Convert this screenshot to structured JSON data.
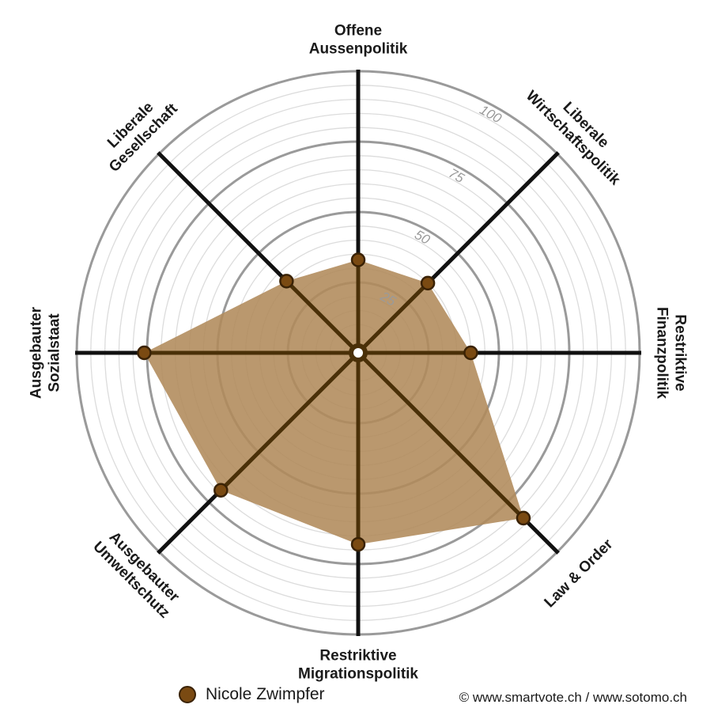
{
  "chart_data": {
    "type": "radar",
    "axes": [
      [
        "Offene",
        "Aussenpolitik"
      ],
      [
        "Liberale",
        "Wirtschaftspolitik"
      ],
      [
        "Restriktive",
        "Finanzpolitik"
      ],
      [
        "Law & Order"
      ],
      [
        "Restriktive",
        "Migrationspolitik"
      ],
      [
        "Ausgebauter",
        "Umweltschutz"
      ],
      [
        "Ausgebauter",
        "Sozialstaat"
      ],
      [
        "Liberale",
        "Gesellschaft"
      ]
    ],
    "series": [
      {
        "name": "Nicole Zwimpfer",
        "values": [
          33,
          35,
          40,
          83,
          68,
          69,
          76,
          36
        ]
      }
    ],
    "radial_ticks": [
      25,
      50,
      75,
      100
    ],
    "range": [
      0,
      100
    ],
    "grid": true,
    "legend": "bottom-left"
  },
  "legend": {
    "name": "Nicole Zwimpfer"
  },
  "credit": "© www.smartvote.ch / www.sotomo.ch",
  "colors": {
    "fill": "#b08a5a",
    "marker": "#7a4a12",
    "marker_stroke": "#3a2205",
    "inner_spoke": "#4a3008",
    "outer_spoke": "#111111",
    "major_ring": "#9a9a9a",
    "minor_ring": "#dcdcdc"
  }
}
